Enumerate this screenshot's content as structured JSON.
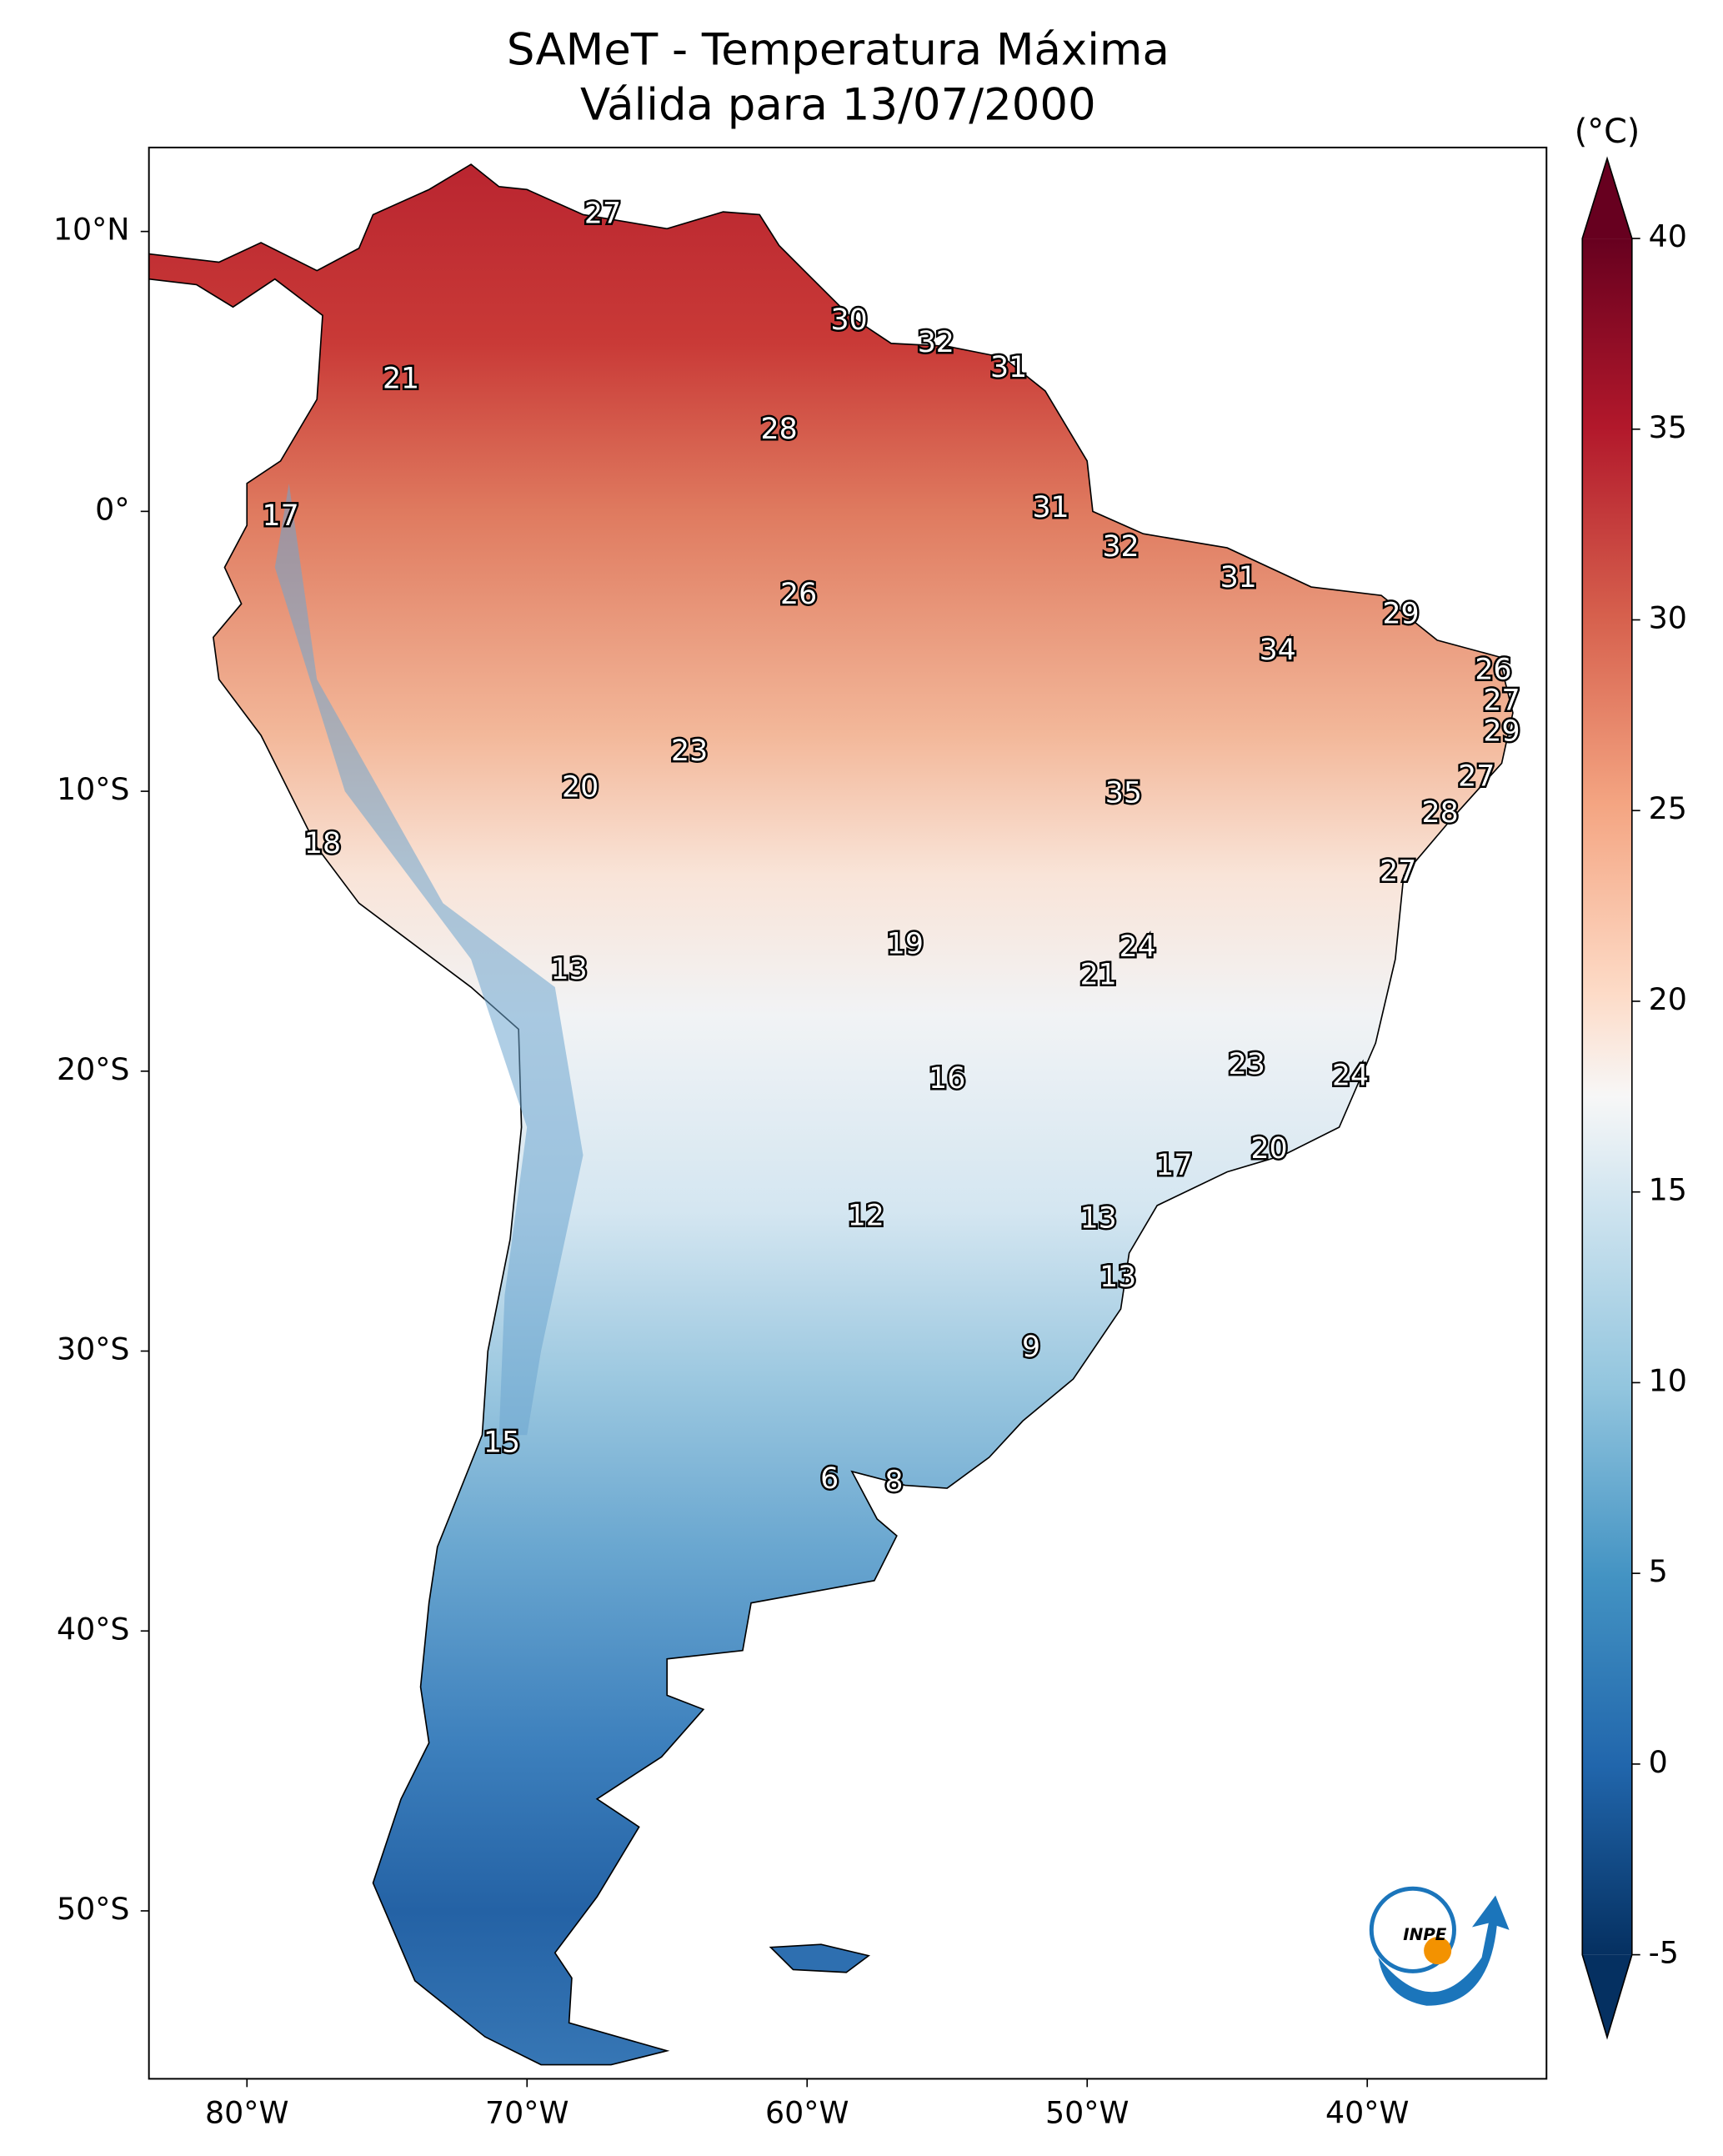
{
  "chart_data": {
    "type": "map",
    "title": "SAMeT - Temperatura Máxima",
    "subtitle": "Válida para 13/07/2000",
    "xlim": [
      -83.5,
      -33.6
    ],
    "ylim": [
      -56,
      13
    ],
    "xticks": [
      {
        "value": -80,
        "label": "80°W"
      },
      {
        "value": -70,
        "label": "70°W"
      },
      {
        "value": -60,
        "label": "60°W"
      },
      {
        "value": -50,
        "label": "50°W"
      },
      {
        "value": -40,
        "label": "40°W"
      }
    ],
    "yticks": [
      {
        "value": 10,
        "label": "10°N"
      },
      {
        "value": 0,
        "label": "0°"
      },
      {
        "value": -10,
        "label": "10°S"
      },
      {
        "value": -20,
        "label": "20°S"
      },
      {
        "value": -30,
        "label": "30°S"
      },
      {
        "value": -40,
        "label": "40°S"
      },
      {
        "value": -50,
        "label": "50°S"
      }
    ],
    "colorbar": {
      "label": "(°C)",
      "lim": [
        -5,
        40
      ],
      "ticks": [
        -5,
        0,
        5,
        10,
        15,
        20,
        25,
        30,
        35,
        40
      ],
      "colormap": "RdBu_r"
    },
    "logo_text": "INPE",
    "stations": [
      {
        "lon": -67.3,
        "lat": 10.6,
        "value": 27
      },
      {
        "lon": -74.5,
        "lat": 4.7,
        "value": 21
      },
      {
        "lon": -58.5,
        "lat": 6.8,
        "value": 30
      },
      {
        "lon": -55.4,
        "lat": 6.0,
        "value": 32
      },
      {
        "lon": -52.8,
        "lat": 5.1,
        "value": 31
      },
      {
        "lon": -61.0,
        "lat": 2.9,
        "value": 28
      },
      {
        "lon": -78.8,
        "lat": -0.2,
        "value": 17
      },
      {
        "lon": -51.3,
        "lat": 0.1,
        "value": 31
      },
      {
        "lon": -48.8,
        "lat": -1.3,
        "value": 32
      },
      {
        "lon": -60.3,
        "lat": -3.0,
        "value": 26
      },
      {
        "lon": -44.6,
        "lat": -2.4,
        "value": 31
      },
      {
        "lon": -38.8,
        "lat": -3.7,
        "value": 29
      },
      {
        "lon": -43.2,
        "lat": -5.0,
        "value": 34
      },
      {
        "lon": -35.5,
        "lat": -5.7,
        "value": 26
      },
      {
        "lon": -35.2,
        "lat": -6.8,
        "value": 27
      },
      {
        "lon": -35.2,
        "lat": -7.9,
        "value": 29
      },
      {
        "lon": -64.2,
        "lat": -8.6,
        "value": 23
      },
      {
        "lon": -68.1,
        "lat": -9.9,
        "value": 20
      },
      {
        "lon": -36.1,
        "lat": -9.5,
        "value": 27
      },
      {
        "lon": -48.7,
        "lat": -10.1,
        "value": 35
      },
      {
        "lon": -37.4,
        "lat": -10.8,
        "value": 28
      },
      {
        "lon": -77.3,
        "lat": -11.9,
        "value": 18
      },
      {
        "lon": -38.9,
        "lat": -12.9,
        "value": 27
      },
      {
        "lon": -56.5,
        "lat": -15.5,
        "value": 19
      },
      {
        "lon": -48.2,
        "lat": -15.6,
        "value": 24
      },
      {
        "lon": -49.6,
        "lat": -16.6,
        "value": 21
      },
      {
        "lon": -68.5,
        "lat": -16.4,
        "value": 13
      },
      {
        "lon": -55.0,
        "lat": -20.3,
        "value": 16
      },
      {
        "lon": -44.3,
        "lat": -19.8,
        "value": 23
      },
      {
        "lon": -40.6,
        "lat": -20.2,
        "value": 24
      },
      {
        "lon": -43.5,
        "lat": -22.8,
        "value": 20
      },
      {
        "lon": -46.9,
        "lat": -23.4,
        "value": 17
      },
      {
        "lon": -57.9,
        "lat": -25.2,
        "value": 12
      },
      {
        "lon": -49.6,
        "lat": -25.3,
        "value": 13
      },
      {
        "lon": -48.9,
        "lat": -27.4,
        "value": 13
      },
      {
        "lon": -52.0,
        "lat": -29.9,
        "value": 9
      },
      {
        "lon": -70.9,
        "lat": -33.3,
        "value": 15
      },
      {
        "lon": -59.2,
        "lat": -34.6,
        "value": 6
      },
      {
        "lon": -56.9,
        "lat": -34.7,
        "value": 8
      }
    ]
  }
}
